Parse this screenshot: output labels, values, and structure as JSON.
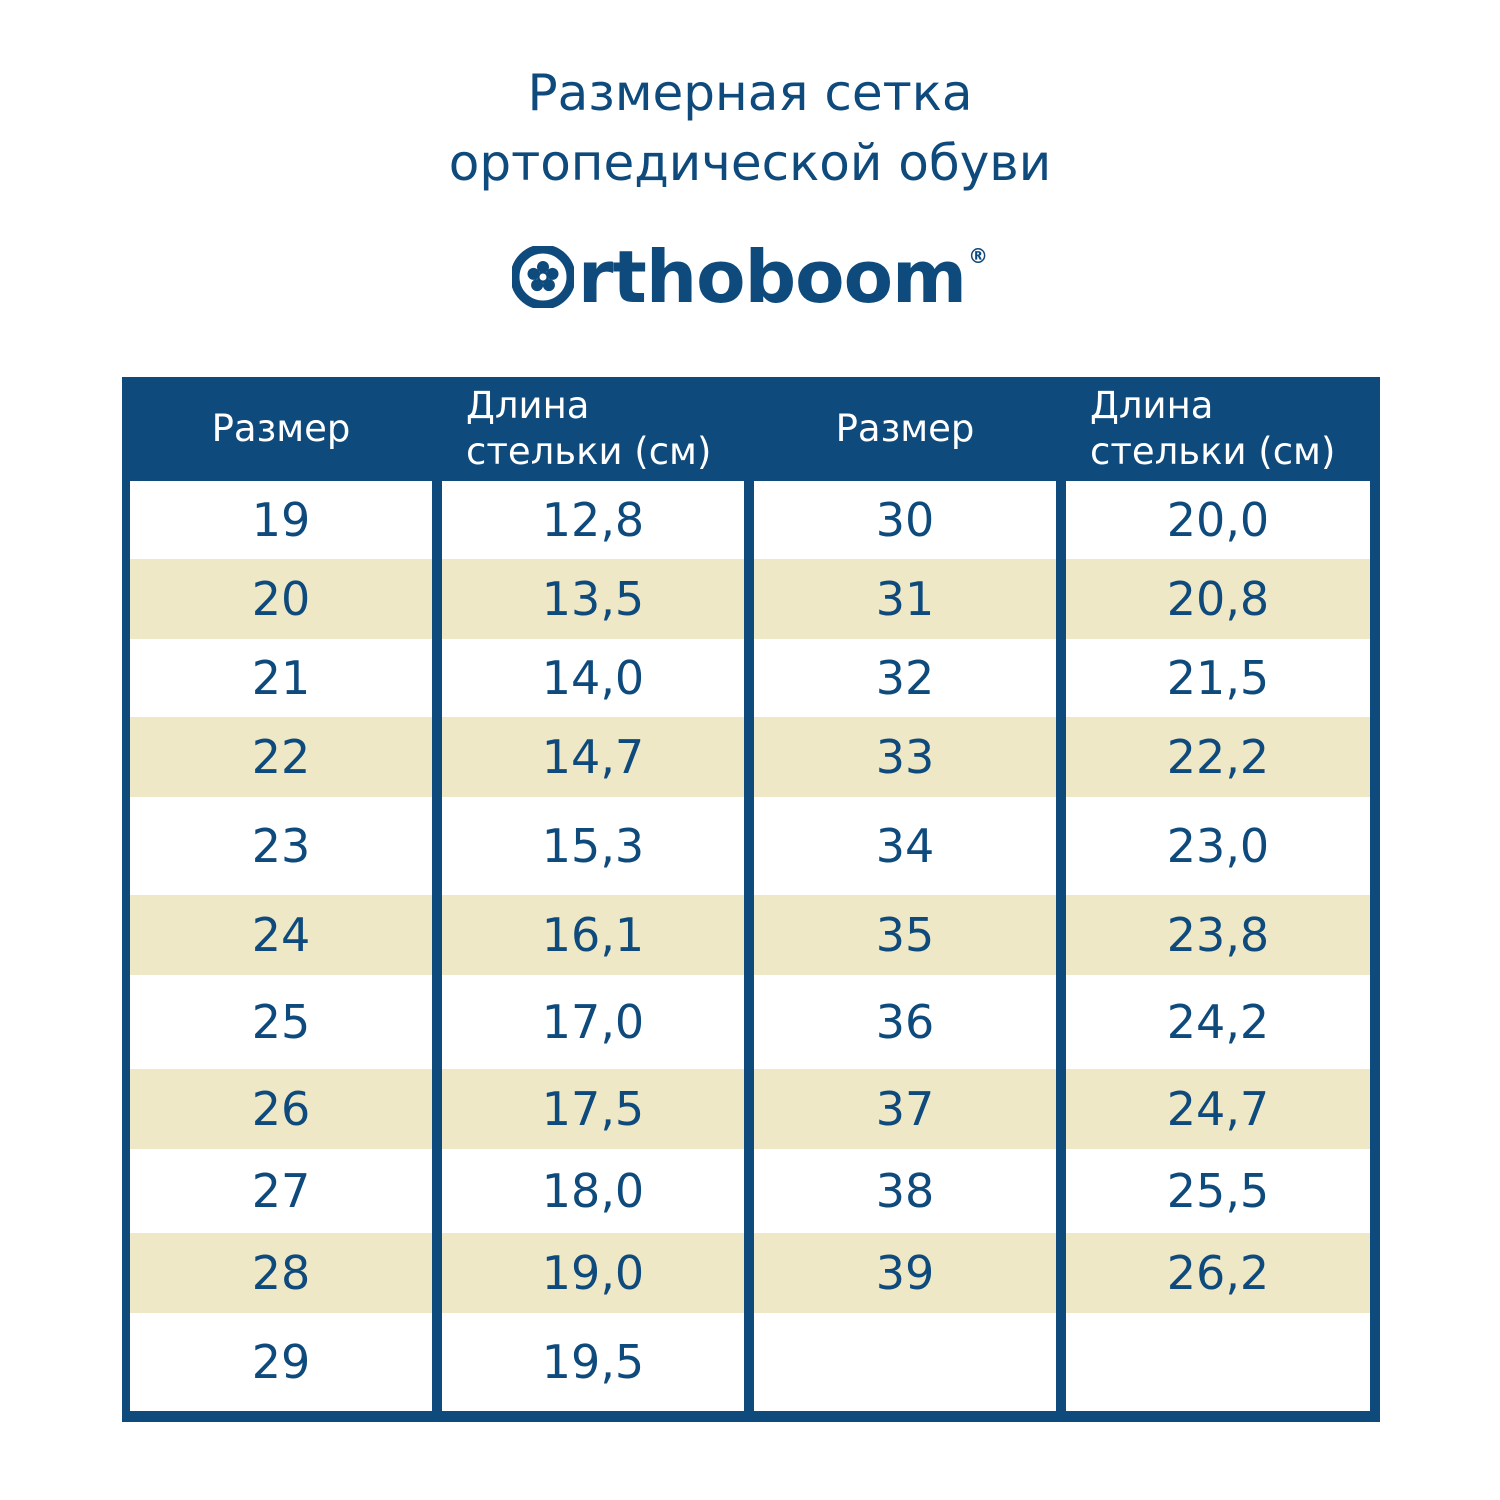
{
  "title": {
    "line1": "Размерная сетка",
    "line2": "ортопедической обуви"
  },
  "logo": {
    "text": "rthoboom",
    "icon": "flower-o-icon",
    "reg_mark": "®"
  },
  "colors": {
    "navy": "#0e4a7c",
    "stripe": "#efe8c7",
    "white": "#ffffff"
  },
  "table": {
    "headers": [
      "Размер",
      "Длина\nстельки (см)",
      "Размер",
      "Длина\nстельки (см)"
    ],
    "left_rows": [
      [
        "19",
        "12,8"
      ],
      [
        "20",
        "13,5"
      ],
      [
        "21",
        "14,0"
      ],
      [
        "22",
        "14,7"
      ],
      [
        "23",
        "15,3"
      ],
      [
        "24",
        "16,1"
      ],
      [
        "25",
        "17,0"
      ],
      [
        "26",
        "17,5"
      ],
      [
        "27",
        "18,0"
      ],
      [
        "28",
        "19,0"
      ],
      [
        "29",
        "19,5"
      ]
    ],
    "right_rows": [
      [
        "30",
        "20,0"
      ],
      [
        "31",
        "20,8"
      ],
      [
        "32",
        "21,5"
      ],
      [
        "33",
        "22,2"
      ],
      [
        "34",
        "23,0"
      ],
      [
        "35",
        "23,8"
      ],
      [
        "36",
        "24,2"
      ],
      [
        "37",
        "24,7"
      ],
      [
        "38",
        "25,5"
      ],
      [
        "39",
        "26,2"
      ],
      [
        "",
        ""
      ]
    ]
  }
}
